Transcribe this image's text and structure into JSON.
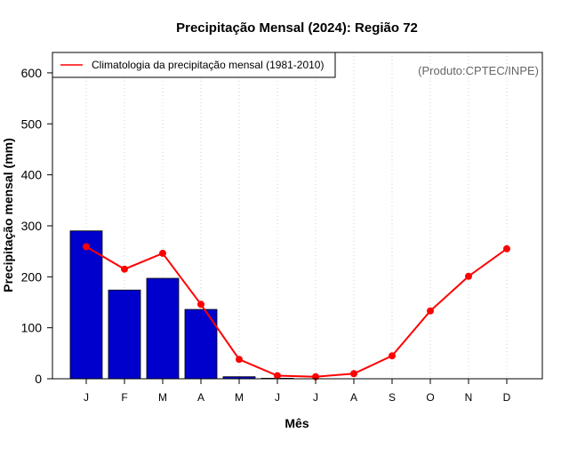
{
  "chart_data": {
    "type": "bar",
    "title": "Precipitação Mensal (2024): Região 72",
    "xlabel": "Mês",
    "ylabel": "Precipitação mensal (mm)",
    "ylim": [
      0,
      640
    ],
    "yticks": [
      0,
      100,
      200,
      300,
      400,
      500,
      600
    ],
    "categories": [
      "J",
      "F",
      "M",
      "A",
      "M",
      "J",
      "J",
      "A",
      "S",
      "O",
      "N",
      "D"
    ],
    "grid": "vertical dotted",
    "source_note": "(Produto:CPTEC/INPE)",
    "series": [
      {
        "name": "Precipitação mensal 2024",
        "kind": "bar",
        "color": "#0000cc",
        "values": [
          290,
          174,
          197,
          136,
          4,
          1,
          null,
          null,
          null,
          null,
          null,
          null
        ]
      },
      {
        "name": "Climatologia da precipitação mensal (1981-2010)",
        "kind": "line",
        "color": "#ff0000",
        "values": [
          259,
          215,
          246,
          146,
          38,
          6,
          4,
          10,
          45,
          133,
          201,
          255
        ]
      }
    ],
    "legend": {
      "position": "top-left",
      "entries": [
        "Climatologia da precipitação mensal (1981-2010)"
      ]
    }
  }
}
